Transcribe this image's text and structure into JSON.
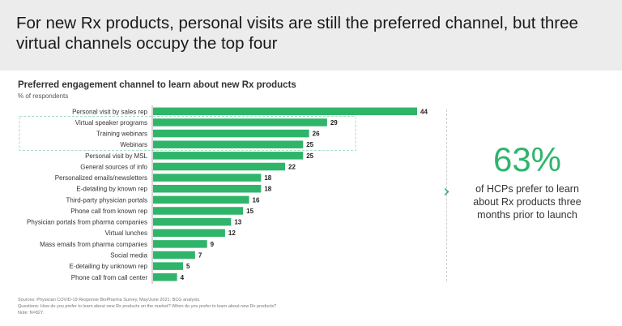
{
  "header": {
    "title": "For new Rx products, personal visits are still the preferred channel, but three virtual channels occupy the top four"
  },
  "chart_data": {
    "type": "bar",
    "orientation": "horizontal",
    "title": "Preferred engagement channel to learn about new Rx products",
    "subtitle": "% of respondents",
    "categories": [
      "Personal visit by sales rep",
      "Virtual speaker programs",
      "Training webinars",
      "Webinars",
      "Personal visit by MSL",
      "General sources of info",
      "Personalized emails/newsletters",
      "E-detailing by known rep",
      "Third-party physician portals",
      "Phone call from known rep",
      "Physician portals from pharma companies",
      "Virtual lunches",
      "Mass emails from pharma companies",
      "Social media",
      "E-detailing by unknown rep",
      "Phone call from call center"
    ],
    "values": [
      44,
      29,
      26,
      25,
      25,
      22,
      18,
      18,
      16,
      15,
      13,
      12,
      9,
      7,
      5,
      4
    ],
    "highlighted_categories": [
      "Virtual speaker programs",
      "Training webinars",
      "Webinars"
    ],
    "xlim": [
      0,
      44
    ],
    "bar_color": "#2fb56a",
    "grid": false,
    "legend": "none"
  },
  "callout": {
    "value": "63%",
    "text": "of HCPs prefer to learn about Rx products three months prior to launch",
    "accent_color": "#2fb56a",
    "icon": "chevron-right-icon"
  },
  "footnotes": {
    "sources": "Sources: Physician COVID-19 Response BioPharma Survey, May/June 2021; BCG analysis.",
    "questions": "Questions: How do you prefer to learn about new Rx products on the market? When do you prefer to learn about new Rx products?",
    "note": "Note: N=827."
  }
}
